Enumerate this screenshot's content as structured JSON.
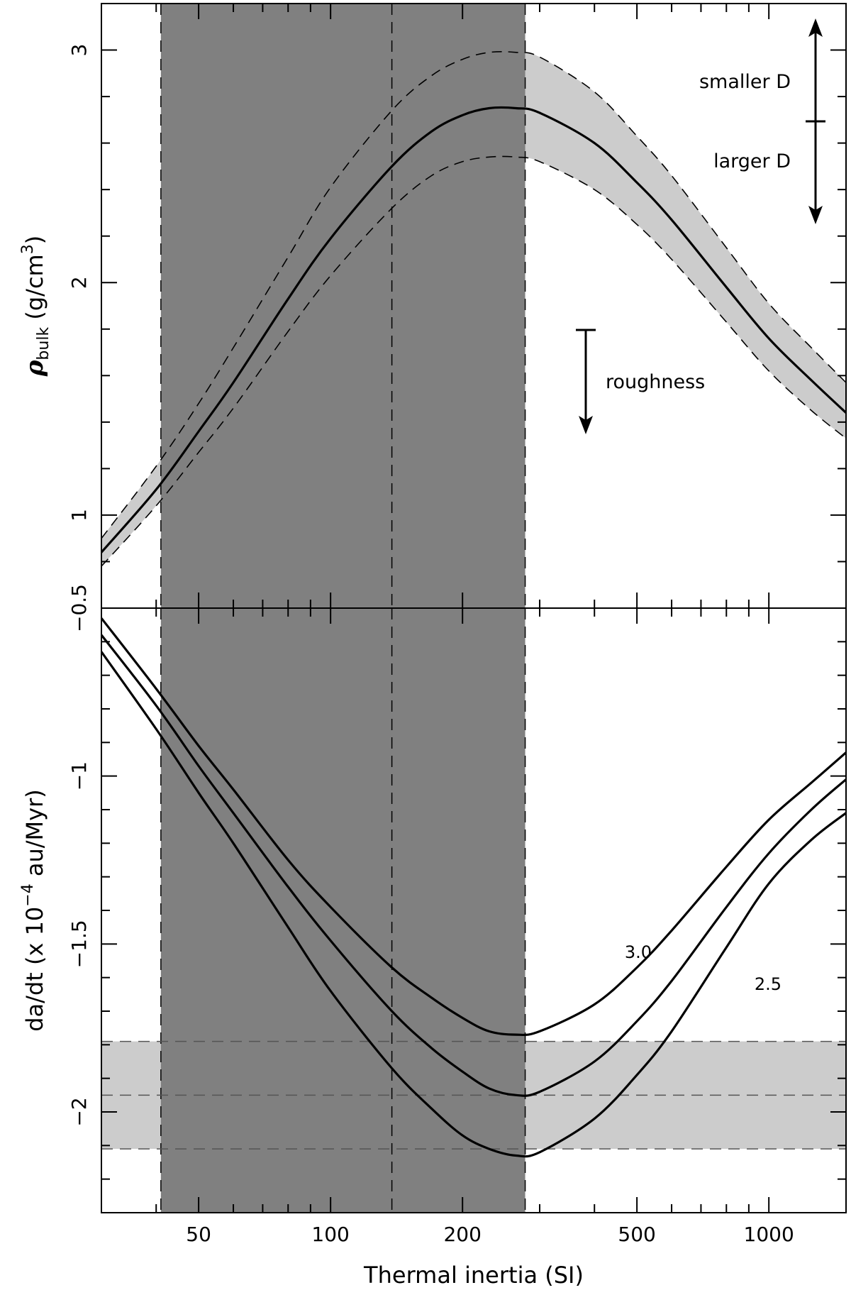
{
  "chart_data": [
    {
      "type": "line",
      "panel": "top",
      "ylabel": {
        "symbol": "ρ",
        "sub": "bulk",
        "unit": " (g/cm",
        "sup": "3",
        "close": ")"
      },
      "xscale": "log",
      "xlim": [
        30,
        1500
      ],
      "ylim": [
        0.6,
        3.2
      ],
      "xticks": [
        50,
        100,
        200,
        500,
        1000
      ],
      "yticks": [
        1,
        2,
        3
      ],
      "ytick_labels": [
        "1",
        "2",
        "3"
      ],
      "shaded_x_range": [
        41,
        278
      ],
      "vline_x": [
        41,
        138,
        278
      ],
      "x": [
        30,
        40,
        50,
        60,
        80,
        100,
        138,
        170,
        200,
        230,
        265,
        300,
        400,
        500,
        600,
        800,
        1000,
        1250,
        1500
      ],
      "series": [
        {
          "role": "central",
          "values": [
            0.84,
            1.11,
            1.36,
            1.57,
            1.93,
            2.19,
            2.5,
            2.65,
            2.72,
            2.75,
            2.75,
            2.73,
            2.6,
            2.43,
            2.27,
            1.98,
            1.76,
            1.58,
            1.44
          ]
        },
        {
          "role": "upper",
          "values": [
            0.9,
            1.21,
            1.48,
            1.72,
            2.11,
            2.41,
            2.74,
            2.89,
            2.96,
            2.99,
            2.99,
            2.97,
            2.82,
            2.63,
            2.46,
            2.15,
            1.91,
            1.72,
            1.57
          ]
        },
        {
          "role": "lower",
          "values": [
            0.78,
            1.04,
            1.27,
            1.46,
            1.79,
            2.03,
            2.32,
            2.46,
            2.52,
            2.54,
            2.54,
            2.52,
            2.4,
            2.25,
            2.1,
            1.83,
            1.62,
            1.45,
            1.33
          ]
        }
      ],
      "annotations": {
        "smaller_d": "smaller D",
        "larger_d": "larger D",
        "roughness": "roughness"
      }
    },
    {
      "type": "line",
      "panel": "bottom",
      "xlabel": "Thermal inertia (SI)",
      "ylabel": {
        "pre": "da/dt (x 10",
        "sup": "−4",
        "post": " au/Myr)"
      },
      "xscale": "log",
      "xlim": [
        30,
        1500
      ],
      "ylim": [
        -2.3,
        -0.5
      ],
      "xticks": [
        50,
        100,
        200,
        500,
        1000
      ],
      "xtick_labels": [
        "50",
        "100",
        "200",
        "500",
        "1000"
      ],
      "yticks": [
        -0.5,
        -1,
        -1.5,
        -2
      ],
      "ytick_labels": [
        "−0.5",
        "−1",
        "−1.5",
        "−2"
      ],
      "shaded_x_range": [
        41,
        278
      ],
      "vline_x": [
        41,
        138,
        278
      ],
      "shaded_y_band": [
        -2.11,
        -1.79
      ],
      "hline_y": [
        -1.79,
        -1.95,
        -2.11
      ],
      "x": [
        30,
        40,
        50,
        60,
        80,
        100,
        138,
        170,
        200,
        230,
        265,
        300,
        400,
        500,
        600,
        800,
        1000,
        1250,
        1500
      ],
      "series": [
        {
          "name": "3.0",
          "values": [
            -0.53,
            -0.74,
            -0.91,
            -1.04,
            -1.25,
            -1.39,
            -1.57,
            -1.66,
            -1.72,
            -1.76,
            -1.77,
            -1.76,
            -1.68,
            -1.57,
            -1.46,
            -1.27,
            -1.13,
            -1.02,
            -0.93
          ]
        },
        {
          "name": "2.5",
          "values": [
            -0.58,
            -0.79,
            -0.97,
            -1.11,
            -1.33,
            -1.49,
            -1.7,
            -1.81,
            -1.88,
            -1.93,
            -1.95,
            -1.94,
            -1.85,
            -1.73,
            -1.61,
            -1.39,
            -1.23,
            -1.1,
            -1.01
          ]
        },
        {
          "role": "third",
          "values": [
            -0.63,
            -0.86,
            -1.05,
            -1.2,
            -1.45,
            -1.64,
            -1.87,
            -1.99,
            -2.07,
            -2.11,
            -2.13,
            -2.12,
            -2.02,
            -1.89,
            -1.76,
            -1.51,
            -1.32,
            -1.19,
            -1.11
          ]
        }
      ]
    }
  ]
}
